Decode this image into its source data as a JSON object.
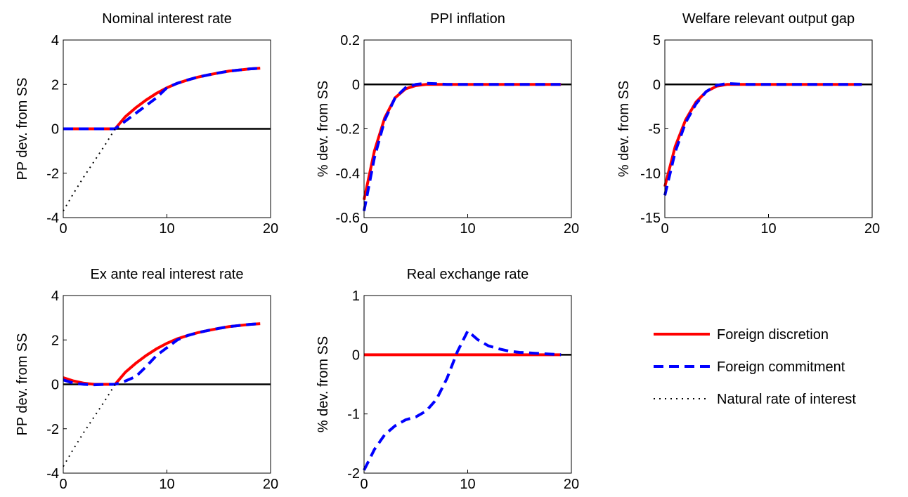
{
  "chart_data": [
    {
      "type": "line",
      "title": "Nominal interest rate",
      "ylabel": "PP dev. from SS",
      "x": [
        0,
        1,
        2,
        3,
        4,
        5,
        6,
        7,
        8,
        9,
        10,
        11,
        12,
        13,
        14,
        15,
        16,
        17,
        18,
        19
      ],
      "xlim": [
        0,
        20
      ],
      "xticks": [
        0,
        10,
        20
      ],
      "ylim": [
        -4,
        4
      ],
      "yticks": [
        -4,
        -2,
        0,
        2,
        4
      ],
      "hline": 0,
      "series": [
        {
          "name": "Foreign discretion",
          "color": "#ff0000",
          "dash": "solid",
          "values": [
            0,
            0,
            0,
            0,
            0,
            0,
            0.55,
            0.95,
            1.3,
            1.6,
            1.85,
            2.05,
            2.2,
            2.33,
            2.43,
            2.52,
            2.6,
            2.65,
            2.7,
            2.73
          ]
        },
        {
          "name": "Foreign commitment",
          "color": "#0000ff",
          "dash": "dashed",
          "values": [
            0,
            0,
            0,
            0,
            0,
            0,
            0.35,
            0.7,
            1.05,
            1.4,
            1.85,
            2.05,
            2.2,
            2.33,
            2.43,
            2.52,
            2.6,
            2.65,
            2.7,
            2.73
          ]
        },
        {
          "name": "Natural rate of interest",
          "color": "#000000",
          "dash": "dotted",
          "values": [
            -3.7,
            -2.9,
            -2.15,
            -1.45,
            -0.75,
            0,
            null,
            null,
            null,
            null,
            null,
            null,
            null,
            null,
            null,
            null,
            null,
            null,
            null,
            null
          ]
        }
      ]
    },
    {
      "type": "line",
      "title": "PPI inflation",
      "ylabel": "% dev. from SS",
      "x": [
        0,
        1,
        2,
        3,
        4,
        5,
        6,
        7,
        8,
        9,
        10,
        11,
        12,
        13,
        14,
        15,
        16,
        17,
        18,
        19
      ],
      "xlim": [
        0,
        20
      ],
      "xticks": [
        0,
        10,
        20
      ],
      "ylim": [
        -0.6,
        0.2
      ],
      "yticks": [
        -0.6,
        -0.4,
        -0.2,
        0,
        0.2
      ],
      "hline": 0,
      "series": [
        {
          "color": "#ff0000",
          "dash": "solid",
          "values": [
            -0.52,
            -0.3,
            -0.15,
            -0.06,
            -0.02,
            -0.005,
            0,
            0,
            0,
            0,
            0,
            0,
            0,
            0,
            0,
            0,
            0,
            0,
            0,
            0
          ]
        },
        {
          "color": "#0000ff",
          "dash": "dashed",
          "values": [
            -0.57,
            -0.33,
            -0.16,
            -0.06,
            -0.015,
            0,
            0.005,
            0.003,
            0,
            0,
            0,
            0,
            0,
            0,
            0,
            0,
            0,
            0,
            0,
            0
          ]
        }
      ]
    },
    {
      "type": "line",
      "title": "Welfare relevant output gap",
      "ylabel": "% dev. from SS",
      "x": [
        0,
        1,
        2,
        3,
        4,
        5,
        6,
        7,
        8,
        9,
        10,
        11,
        12,
        13,
        14,
        15,
        16,
        17,
        18,
        19
      ],
      "xlim": [
        0,
        20
      ],
      "xticks": [
        0,
        10,
        20
      ],
      "ylim": [
        -15,
        5
      ],
      "yticks": [
        -15,
        -10,
        -5,
        0,
        5
      ],
      "hline": 0,
      "series": [
        {
          "color": "#ff0000",
          "dash": "solid",
          "values": [
            -11.5,
            -7,
            -4,
            -2,
            -0.8,
            -0.2,
            0,
            0,
            0,
            0,
            0,
            0,
            0,
            0,
            0,
            0,
            0,
            0,
            0,
            0
          ]
        },
        {
          "color": "#0000ff",
          "dash": "dashed",
          "values": [
            -12.5,
            -7.6,
            -4.3,
            -2.2,
            -0.8,
            -0.1,
            0.1,
            0.05,
            0,
            0,
            0,
            0,
            0,
            0,
            0,
            0,
            0,
            0,
            0,
            0
          ]
        }
      ]
    },
    {
      "type": "line",
      "title": "Ex ante real interest rate",
      "ylabel": "PP dev. from SS",
      "x": [
        0,
        1,
        2,
        3,
        4,
        5,
        6,
        7,
        8,
        9,
        10,
        11,
        12,
        13,
        14,
        15,
        16,
        17,
        18,
        19
      ],
      "xlim": [
        0,
        20
      ],
      "xticks": [
        0,
        10,
        20
      ],
      "ylim": [
        -4,
        4
      ],
      "yticks": [
        -4,
        -2,
        0,
        2,
        4
      ],
      "hline": 0,
      "series": [
        {
          "color": "#ff0000",
          "dash": "solid",
          "values": [
            0.3,
            0.15,
            0.05,
            0,
            0,
            0,
            0.55,
            0.95,
            1.3,
            1.6,
            1.85,
            2.05,
            2.2,
            2.33,
            2.43,
            2.52,
            2.6,
            2.65,
            2.7,
            2.73
          ]
        },
        {
          "color": "#0000ff",
          "dash": "dashed",
          "values": [
            0.2,
            0.05,
            0,
            -0.02,
            0,
            0,
            0.15,
            0.35,
            0.8,
            1.3,
            1.65,
            2.0,
            2.2,
            2.33,
            2.43,
            2.52,
            2.6,
            2.65,
            2.7,
            2.73
          ]
        },
        {
          "color": "#000000",
          "dash": "dotted",
          "values": [
            -3.7,
            -2.9,
            -2.15,
            -1.45,
            -0.75,
            0,
            null,
            null,
            null,
            null,
            null,
            null,
            null,
            null,
            null,
            null,
            null,
            null,
            null,
            null
          ]
        }
      ]
    },
    {
      "type": "line",
      "title": "Real exchange rate",
      "ylabel": "% dev. from SS",
      "x": [
        0,
        1,
        2,
        3,
        4,
        5,
        6,
        7,
        8,
        9,
        10,
        11,
        12,
        13,
        14,
        15,
        16,
        17,
        18,
        19
      ],
      "xlim": [
        0,
        20
      ],
      "xticks": [
        0,
        10,
        20
      ],
      "ylim": [
        -2,
        1
      ],
      "yticks": [
        -2,
        -1,
        0,
        1
      ],
      "hline": 0,
      "series": [
        {
          "color": "#ff0000",
          "dash": "solid",
          "values": [
            0,
            0,
            0,
            0,
            0,
            0,
            0,
            0,
            0,
            0,
            0,
            0,
            0,
            0,
            0,
            0,
            0,
            0,
            0,
            0
          ]
        },
        {
          "color": "#0000ff",
          "dash": "dashed",
          "values": [
            -1.95,
            -1.6,
            -1.35,
            -1.2,
            -1.1,
            -1.05,
            -0.95,
            -0.75,
            -0.4,
            0.05,
            0.4,
            0.25,
            0.15,
            0.1,
            0.06,
            0.04,
            0.03,
            0.02,
            0.01,
            0
          ]
        }
      ]
    }
  ]
}
